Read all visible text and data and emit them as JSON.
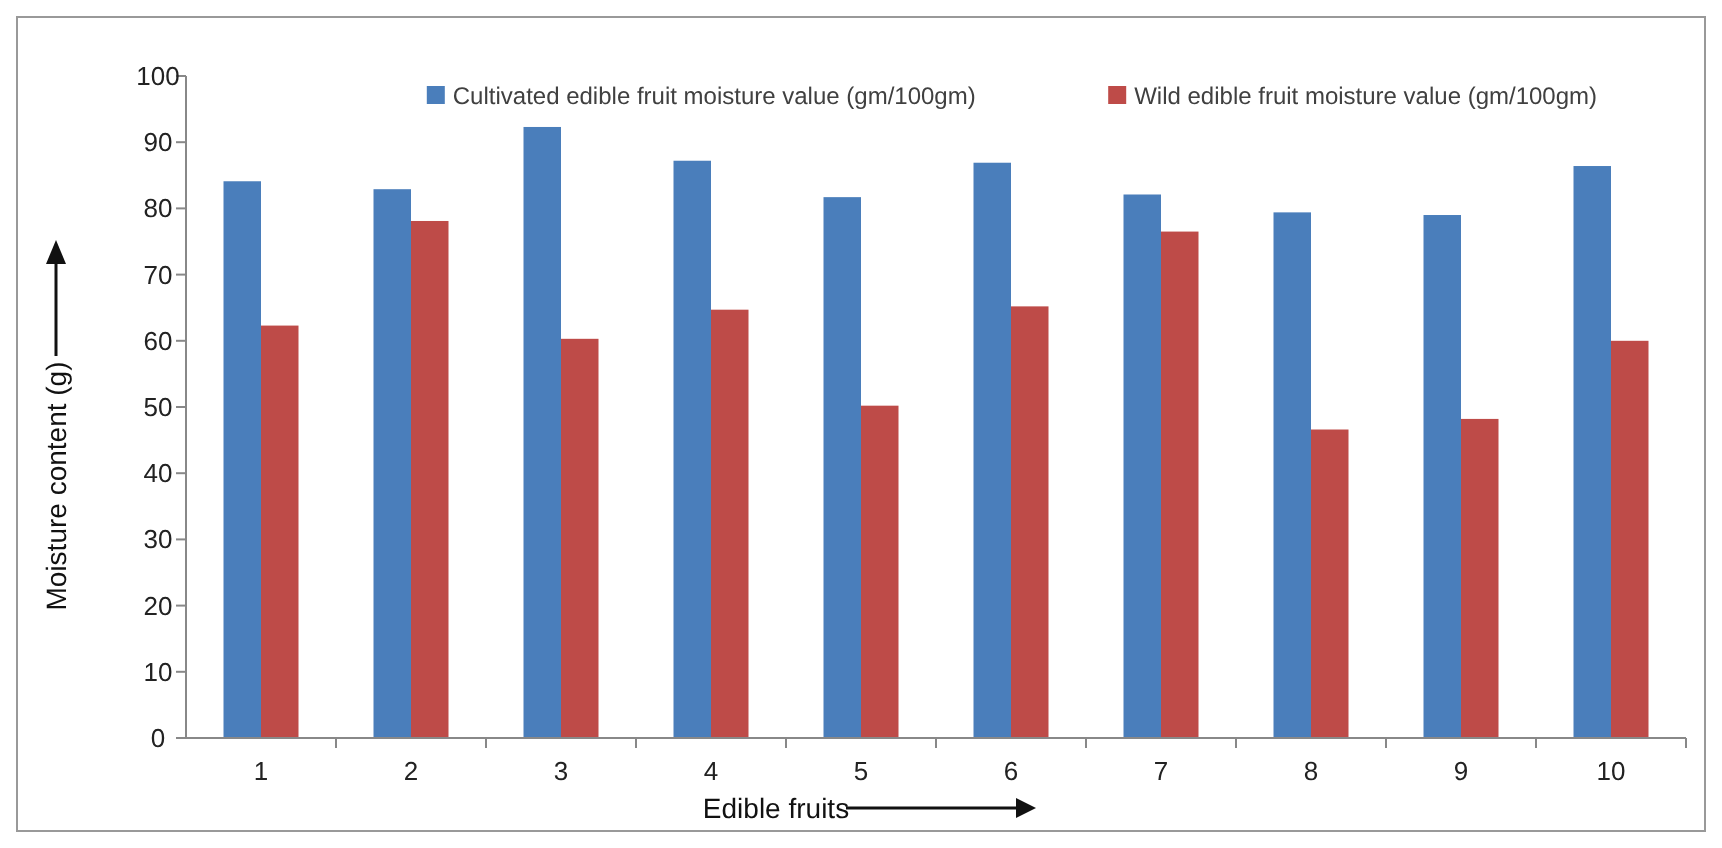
{
  "chart_data": {
    "type": "bar",
    "xlabel": "Edible fruits",
    "ylabel": "Moisture content (g)",
    "categories": [
      "1",
      "2",
      "3",
      "4",
      "5",
      "6",
      "7",
      "8",
      "9",
      "10"
    ],
    "series": [
      {
        "name": "Cultivated edible fruit moisture value (gm/100gm)",
        "color": "#4a7ebb",
        "values": [
          84.1,
          82.9,
          92.3,
          87.2,
          81.7,
          86.9,
          82.1,
          79.4,
          79.0,
          86.4
        ]
      },
      {
        "name": "Wild edible fruit moisture value (gm/100gm)",
        "color": "#be4b48",
        "values": [
          62.3,
          78.1,
          60.3,
          64.7,
          50.2,
          65.2,
          76.5,
          46.6,
          48.2,
          60.0
        ]
      }
    ],
    "ylim": [
      0,
      100
    ],
    "yticks": [
      0,
      10,
      20,
      30,
      40,
      50,
      60,
      70,
      80,
      90,
      100
    ],
    "grid": false,
    "legend": "top right"
  }
}
